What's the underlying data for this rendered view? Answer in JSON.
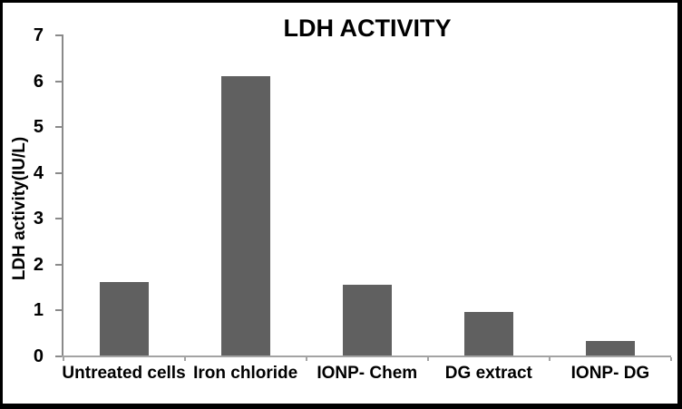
{
  "window": {
    "background": "#ffffff",
    "frame_border_color": "#000000"
  },
  "chart_data": {
    "type": "bar",
    "title": "LDH ACTIVITY",
    "categories": [
      "Untreated cells",
      "Iron chloride",
      "IONP- Chem",
      "DG extract",
      "IONP- DG"
    ],
    "values": [
      1.6,
      6.1,
      1.55,
      0.95,
      0.32
    ],
    "xlabel": "",
    "ylabel": "LDH activity(IU/L)",
    "ylim": [
      0,
      7
    ],
    "yticks": [
      0,
      1,
      2,
      3,
      4,
      5,
      6,
      7
    ],
    "grid": false,
    "legend": false,
    "bar_color": "#606060",
    "yaxis_color": "#8a8a8a",
    "xaxis_color": "#a3a3a3",
    "text_color": "#000000"
  }
}
